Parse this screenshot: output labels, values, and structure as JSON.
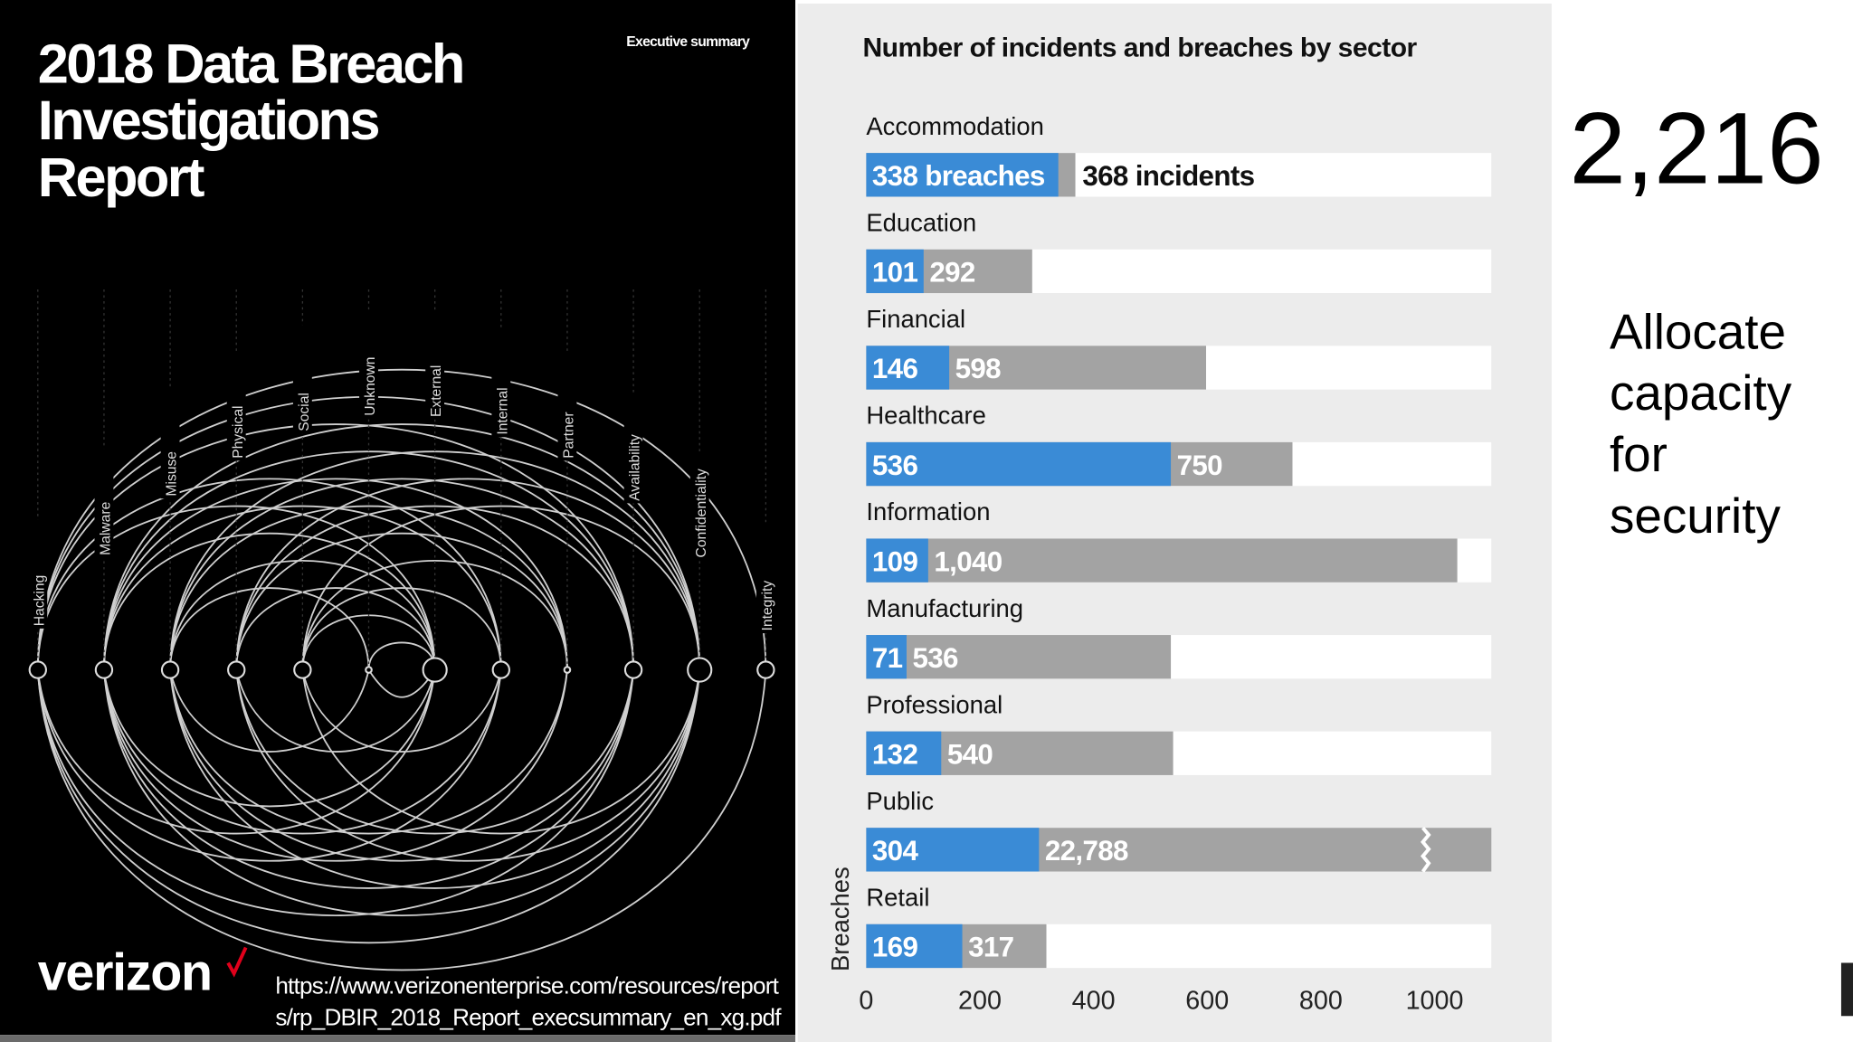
{
  "cover": {
    "title_lines": [
      "2018 Data Breach",
      "Investigations",
      "Report"
    ],
    "tag": "Executive summary",
    "labels": [
      "Hacking",
      "Malware",
      "Misuse",
      "Physical",
      "Social",
      "Unknown",
      "External",
      "Internal",
      "Partner",
      "Availability",
      "Confidentiality",
      "Integrity"
    ],
    "brand": "verizon",
    "url_lines": [
      "https://www.verizonenterprise.com/resources/report",
      "s/rp_DBIR_2018_Report_execsummary_en_xg.pdf"
    ]
  },
  "big_number": "2,216",
  "note_lines": [
    "Allocate",
    "capacity",
    "for",
    "security"
  ],
  "chart_data": {
    "type": "bar",
    "orientation": "horizontal",
    "overlap": true,
    "title": "Number of incidents and breaches by sector",
    "y_label": "Breaches",
    "categories": [
      "Accommodation",
      "Education",
      "Financial",
      "Healthcare",
      "Information",
      "Manufacturing",
      "Professional",
      "Public",
      "Retail"
    ],
    "series": [
      {
        "name": "breaches",
        "color": "#3a8bd6",
        "values": [
          338,
          101,
          146,
          536,
          109,
          71,
          132,
          304,
          169
        ],
        "value_labels": [
          "338 breaches",
          "101",
          "146",
          "536",
          "109",
          "71",
          "132",
          "304",
          "169"
        ]
      },
      {
        "name": "incidents",
        "color": "#a3a3a3",
        "values": [
          368,
          292,
          598,
          750,
          1040,
          536,
          540,
          22788,
          317
        ],
        "value_labels": [
          "368 incidents",
          "292",
          "598",
          "750",
          "1,040",
          "536",
          "540",
          "22,788",
          "317"
        ]
      }
    ],
    "xlim": [
      0,
      1100
    ],
    "xticks": [
      0,
      200,
      400,
      600,
      800,
      1000
    ]
  }
}
